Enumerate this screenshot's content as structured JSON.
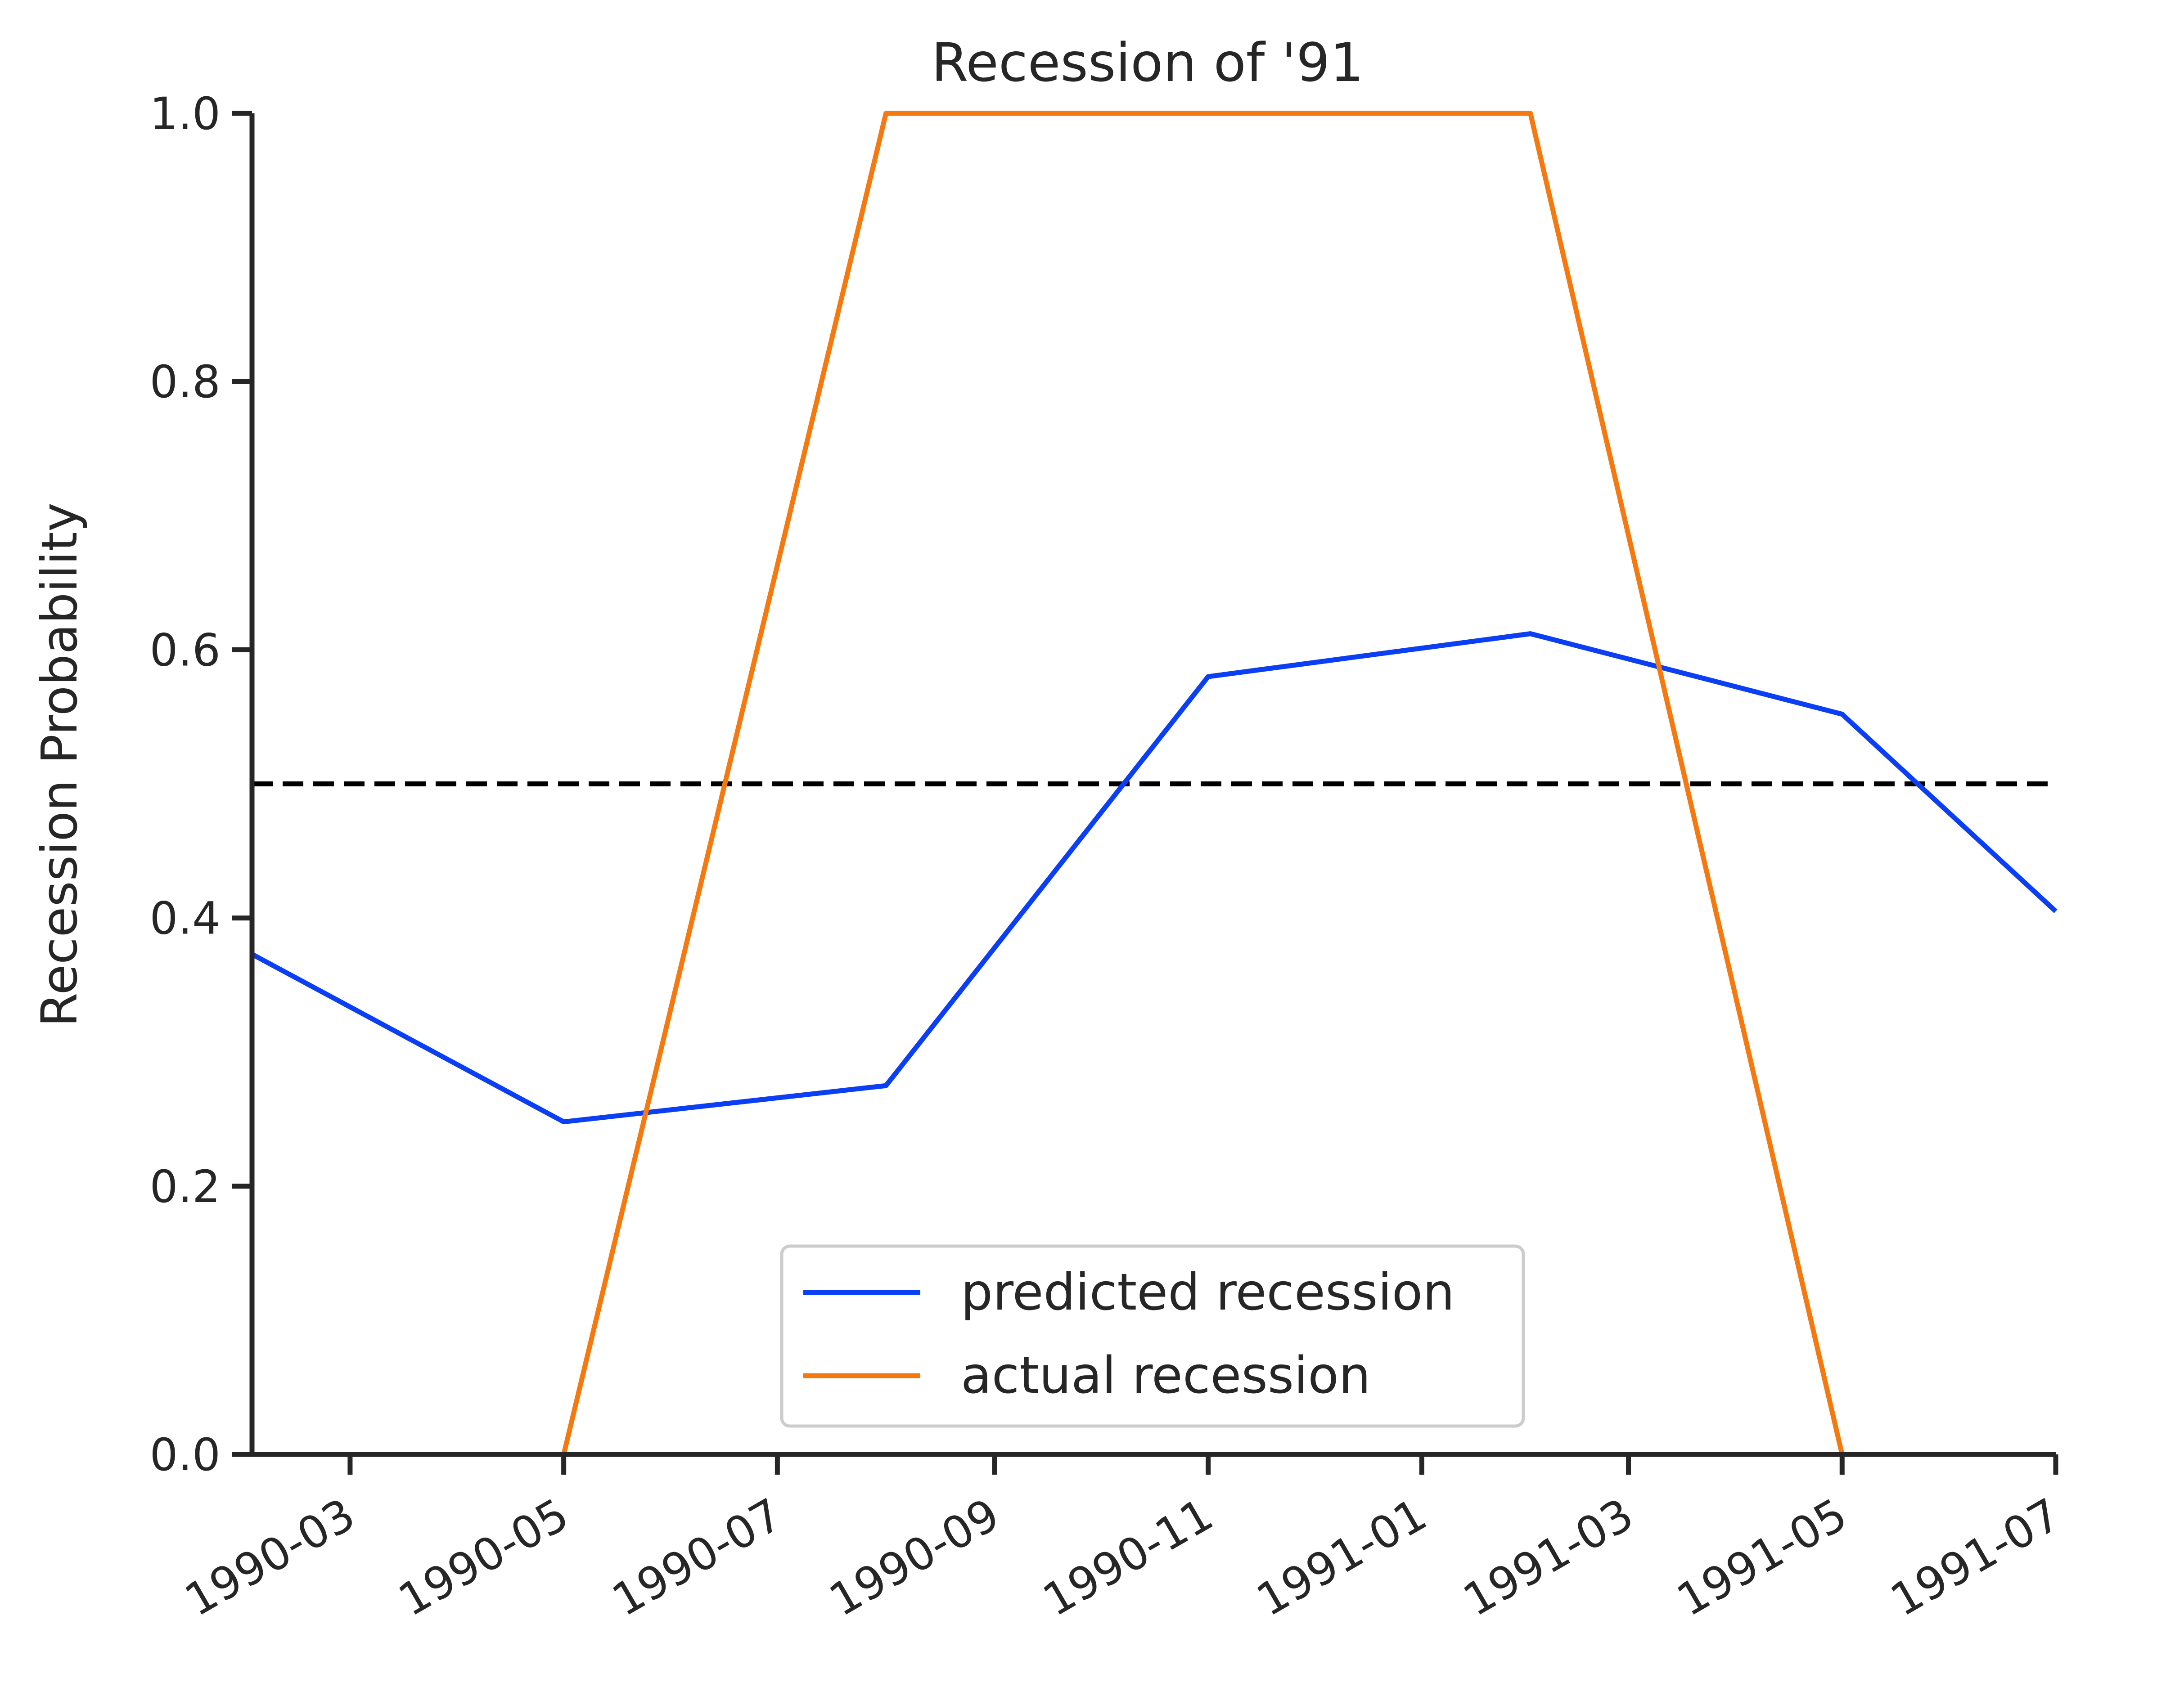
{
  "chart_data": {
    "type": "line",
    "title": "Recession of '91",
    "xlabel": "",
    "ylabel": "Recession Probability",
    "xlim": [
      "1990-02-01",
      "1991-07-01"
    ],
    "ylim": [
      0,
      1
    ],
    "x_ticks": [
      "1990-03",
      "1990-05",
      "1990-07",
      "1990-09",
      "1990-11",
      "1991-01",
      "1991-03",
      "1991-05",
      "1991-07"
    ],
    "y_ticks": [
      "0.0",
      "0.2",
      "0.4",
      "0.6",
      "0.8",
      "1.0"
    ],
    "x": [
      "1990-02-01",
      "1990-05-01",
      "1990-08-01",
      "1990-11-01",
      "1991-02-01",
      "1991-05-01",
      "1991-07-01"
    ],
    "series": [
      {
        "name": "predicted recession",
        "color": "#0a3ff5",
        "values": [
          0.373,
          0.248,
          0.275,
          0.58,
          0.612,
          0.552,
          0.405
        ]
      },
      {
        "name": "actual recession",
        "color": "#f5790f",
        "values": [
          0,
          0,
          1,
          1,
          1,
          0,
          0
        ]
      }
    ],
    "reference_line": {
      "y": 0.5,
      "style": "dashed",
      "color": "#000000"
    },
    "legend": {
      "position": "bottom-center"
    },
    "grid": false
  }
}
